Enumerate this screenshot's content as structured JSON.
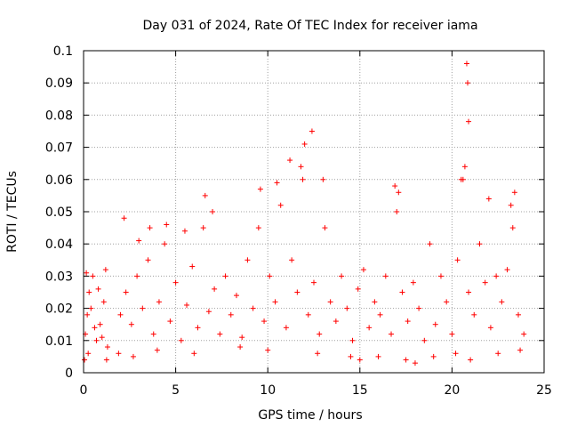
{
  "chart_data": {
    "type": "scatter",
    "title": "Day 031 of 2024, Rate Of TEC Index for receiver iama",
    "xlabel": "GPS time / hours",
    "ylabel": "ROTI / TECUs",
    "xlim": [
      0,
      25
    ],
    "ylim": [
      0,
      0.1
    ],
    "x_ticks": [
      0,
      5,
      10,
      15,
      20,
      25
    ],
    "x_tick_labels": [
      "0",
      "5",
      "10",
      "15",
      "20",
      "25"
    ],
    "y_ticks": [
      0,
      0.01,
      0.02,
      0.03,
      0.04,
      0.05,
      0.06,
      0.07,
      0.08,
      0.09,
      0.1
    ],
    "y_tick_labels": [
      "0",
      "0.01",
      "0.02",
      "0.03",
      "0.04",
      "0.05",
      "0.06",
      "0.07",
      "0.08",
      "0.09",
      "0.1"
    ],
    "grid": true,
    "marker": "+",
    "marker_color": "#ff0000",
    "series": [
      {
        "x": [
          0.1,
          0.2,
          0.3,
          0.5,
          0.7,
          0.9,
          1.1,
          1.3,
          0.15,
          0.4,
          0.6,
          0.8,
          1.0,
          1.2,
          2.0,
          2.3,
          2.6,
          2.9,
          3.2,
          3.5,
          3.8,
          4.1,
          4.4,
          4.7,
          5.0,
          5.3,
          5.6,
          5.9,
          6.2,
          6.5,
          6.8,
          7.1,
          7.4,
          7.7,
          8.0,
          8.3,
          8.6,
          8.9,
          9.2,
          9.5,
          9.8,
          10.1,
          10.4,
          10.7,
          11.0,
          11.3,
          11.6,
          11.9,
          12.2,
          12.5,
          12.8,
          13.1,
          13.4,
          13.7,
          14.0,
          14.3,
          14.6,
          14.9,
          15.2,
          15.5,
          15.8,
          16.1,
          16.4,
          16.7,
          17.0,
          17.3,
          17.6,
          17.9,
          18.2,
          18.5,
          18.8,
          19.1,
          19.4,
          19.7,
          20.0,
          20.3,
          20.6,
          20.9,
          21.2,
          21.5,
          21.8,
          22.1,
          22.4,
          22.7,
          23.0,
          23.3,
          23.6,
          23.9,
          2.2,
          3.0,
          3.6,
          4.5,
          5.5,
          6.6,
          7.0,
          9.6,
          10.5,
          11.2,
          11.8,
          12.0,
          12.4,
          13.0,
          16.9,
          17.1,
          20.5,
          20.7,
          20.8,
          20.85,
          20.9,
          22.0,
          23.2,
          23.4,
          0.05,
          0.25,
          1.25,
          1.9,
          2.7,
          4.0,
          6.0,
          8.5,
          10.0,
          12.7,
          14.5,
          15.0,
          16.0,
          17.5,
          18.0,
          19.0,
          20.2,
          21.0,
          22.5,
          23.7
        ],
        "y": [
          0.012,
          0.018,
          0.025,
          0.03,
          0.01,
          0.015,
          0.022,
          0.008,
          0.031,
          0.02,
          0.014,
          0.026,
          0.011,
          0.032,
          0.018,
          0.025,
          0.015,
          0.03,
          0.02,
          0.035,
          0.012,
          0.022,
          0.04,
          0.016,
          0.028,
          0.01,
          0.021,
          0.033,
          0.014,
          0.045,
          0.019,
          0.026,
          0.012,
          0.03,
          0.018,
          0.024,
          0.011,
          0.035,
          0.02,
          0.045,
          0.016,
          0.03,
          0.022,
          0.052,
          0.014,
          0.035,
          0.025,
          0.06,
          0.018,
          0.028,
          0.012,
          0.045,
          0.022,
          0.016,
          0.03,
          0.02,
          0.01,
          0.026,
          0.032,
          0.014,
          0.022,
          0.018,
          0.03,
          0.012,
          0.05,
          0.025,
          0.016,
          0.028,
          0.02,
          0.01,
          0.04,
          0.015,
          0.03,
          0.022,
          0.012,
          0.035,
          0.06,
          0.025,
          0.018,
          0.04,
          0.028,
          0.014,
          0.03,
          0.022,
          0.032,
          0.045,
          0.018,
          0.012,
          0.048,
          0.041,
          0.045,
          0.046,
          0.044,
          0.055,
          0.05,
          0.057,
          0.059,
          0.066,
          0.064,
          0.071,
          0.075,
          0.06,
          0.058,
          0.056,
          0.06,
          0.064,
          0.096,
          0.09,
          0.078,
          0.054,
          0.052,
          0.056,
          0.004,
          0.006,
          0.004,
          0.006,
          0.005,
          0.007,
          0.006,
          0.008,
          0.007,
          0.006,
          0.005,
          0.004,
          0.005,
          0.004,
          0.003,
          0.005,
          0.006,
          0.004,
          0.006,
          0.007
        ]
      }
    ]
  }
}
